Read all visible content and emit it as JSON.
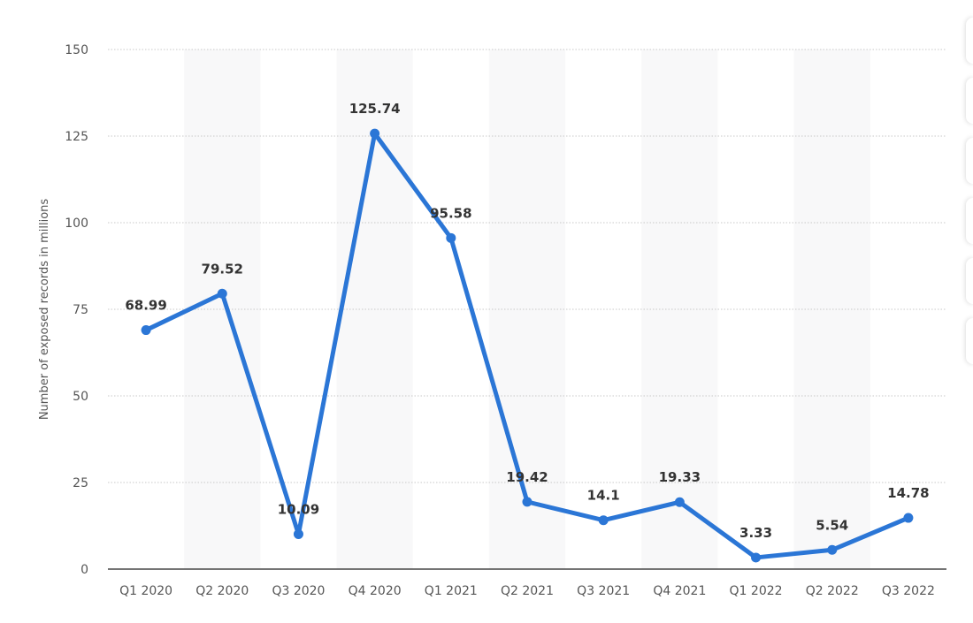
{
  "chart_data": {
    "type": "line",
    "ylabel": "Number of exposed records in millions",
    "xlabel": "",
    "categories": [
      "Q1 2020",
      "Q2 2020",
      "Q3 2020",
      "Q4 2020",
      "Q1 2021",
      "Q2 2021",
      "Q3 2021",
      "Q4 2021",
      "Q1 2022",
      "Q2 2022",
      "Q3 2022"
    ],
    "series": [
      {
        "values": [
          68.99,
          79.52,
          10.09,
          125.74,
          95.58,
          19.42,
          14.1,
          19.33,
          3.33,
          5.54,
          14.78
        ],
        "labels": [
          "68.99",
          "79.52",
          "10.09",
          "125.74",
          "95.58",
          "19.42",
          "14.1",
          "19.33",
          "3.33",
          "5.54",
          "14.78"
        ]
      }
    ],
    "ylim": [
      0,
      150
    ],
    "yticks": [
      0,
      25,
      50,
      75,
      100,
      125,
      150
    ],
    "grid": true,
    "legend": "none",
    "colors": {
      "line": "#2b76d6",
      "band": "#f8f8f9",
      "grid": "#c8c8c8",
      "axis": "#222222"
    }
  }
}
